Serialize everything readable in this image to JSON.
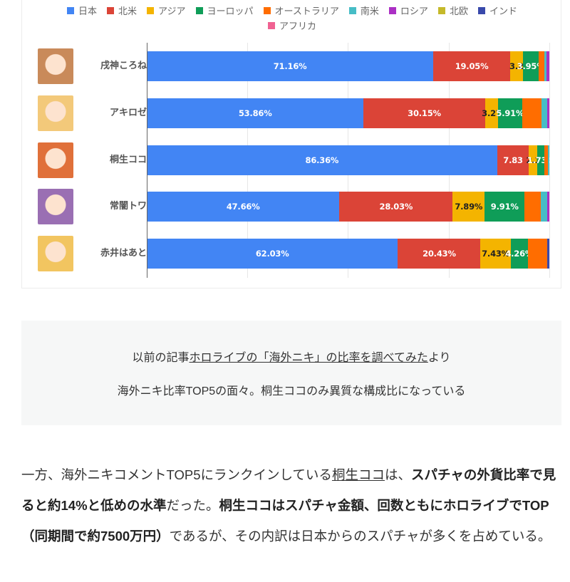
{
  "chart_data": {
    "type": "bar",
    "orientation": "horizontal",
    "stacked": "percent",
    "title": "",
    "xlabel": "",
    "ylabel": "",
    "xlim": [
      0,
      100
    ],
    "grid": true,
    "gridlines_at": [
      0,
      25,
      50,
      75,
      100
    ],
    "legend_position": "top",
    "categories": [
      "戌神ころね",
      "アキロゼ",
      "桐生ココ",
      "常闇トワ",
      "赤井はあと"
    ],
    "series": [
      {
        "name": "日本",
        "color": "#4285f4",
        "values": [
          71.16,
          53.86,
          86.36,
          47.66,
          62.03
        ]
      },
      {
        "name": "北米",
        "color": "#db4437",
        "values": [
          19.05,
          30.15,
          7.83,
          28.03,
          20.43
        ]
      },
      {
        "name": "アジア",
        "color": "#f4b400",
        "values": [
          3.2,
          3.27,
          2.1,
          7.89,
          7.43
        ]
      },
      {
        "name": "ヨーロッパ",
        "color": "#0f9d58",
        "values": [
          3.95,
          5.91,
          1.73,
          9.91,
          4.26
        ]
      },
      {
        "name": "オーストラリア",
        "color": "#ff6d00",
        "values": [
          1.3,
          4.9,
          0.9,
          4.0,
          4.8
        ]
      },
      {
        "name": "南米",
        "color": "#46bdc6",
        "values": [
          0.6,
          1.4,
          0.3,
          1.5,
          0.0
        ]
      },
      {
        "name": "ロシア",
        "color": "#ab30c4",
        "values": [
          0.7,
          0.5,
          0.0,
          0.6,
          0.0
        ]
      },
      {
        "name": "北欧",
        "color": "#c5b92a",
        "values": [
          0.0,
          0.0,
          0.0,
          0.0,
          0.0
        ]
      },
      {
        "name": "インド",
        "color": "#3949ab",
        "values": [
          0.0,
          0.0,
          0.0,
          0.0,
          0.5
        ]
      },
      {
        "name": "アフリカ",
        "color": "#f06292",
        "values": [
          0.0,
          0.0,
          0.0,
          0.0,
          0.0
        ]
      }
    ],
    "data_labels": [
      [
        "71.16%",
        "19.05%",
        "3.2",
        "3.95%"
      ],
      [
        "53.86%",
        "30.15%",
        "3.27",
        "5.91%"
      ],
      [
        "86.36%",
        "7.83",
        "2.1",
        "1.73%"
      ],
      [
        "47.66%",
        "28.03%",
        "7.89%",
        "9.91%"
      ],
      [
        "62.03%",
        "20.43%",
        "7.43%",
        "4.26%"
      ]
    ]
  },
  "legend": [
    {
      "label": "日本",
      "color": "#4285f4"
    },
    {
      "label": "北米",
      "color": "#db4437"
    },
    {
      "label": "アジア",
      "color": "#f4b400"
    },
    {
      "label": "ヨーロッパ",
      "color": "#0f9d58"
    },
    {
      "label": "オーストラリア",
      "color": "#ff6d00"
    },
    {
      "label": "南米",
      "color": "#46bdc6"
    },
    {
      "label": "ロシア",
      "color": "#ab30c4"
    },
    {
      "label": "北欧",
      "color": "#c5b92a"
    },
    {
      "label": "インド",
      "color": "#3949ab"
    },
    {
      "label": "アフリカ",
      "color": "#f06292"
    }
  ],
  "rows": [
    {
      "name": "戌神ころね",
      "avatar_color": "#c98a5a"
    },
    {
      "name": "アキロゼ",
      "avatar_color": "#f3c97a"
    },
    {
      "name": "桐生ココ",
      "avatar_color": "#e0703a"
    },
    {
      "name": "常闇トワ",
      "avatar_color": "#9a6fb3"
    },
    {
      "name": "赤井はあと",
      "avatar_color": "#f2c560"
    }
  ],
  "caption": {
    "line1_prefix": "以前の記事",
    "line1_link": "ホロライブの「海外ニキ」の比率を調べてみた",
    "line1_suffix": "より",
    "line2": "海外ニキ比率TOP5の面々。桐生ココのみ異質な構成比になっている"
  },
  "body": {
    "p1": "一方、海外ニキコメントTOP5にランクインしている",
    "link": "桐生ココ",
    "p2": "は、",
    "b1": "スパチャの外貨比率で見ると約14%と低めの水準",
    "p3": "だった。",
    "b2": "桐生ココはスパチャ金額、回数ともにホロライブでTOP（同期間で約7500万円）",
    "p4": "であるが、その内訳は日本からのスパチャが多くを占めている。"
  }
}
